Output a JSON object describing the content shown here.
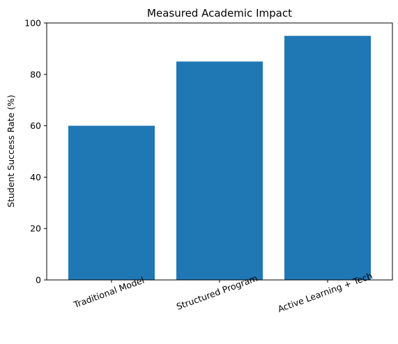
{
  "chart_data": {
    "type": "bar",
    "title": "Measured Academic Impact",
    "xlabel": "",
    "ylabel": "Student Success Rate (%)",
    "categories": [
      "Traditional Model",
      "Structured Program",
      "Active Learning + Tech"
    ],
    "values": [
      60,
      85,
      95
    ],
    "ylim": [
      0,
      100
    ],
    "yticks": [
      0,
      20,
      40,
      60,
      80,
      100
    ],
    "grid": false,
    "legend": "none",
    "bar_color": "#1f77b4",
    "x_tick_rotation_deg": 20
  }
}
